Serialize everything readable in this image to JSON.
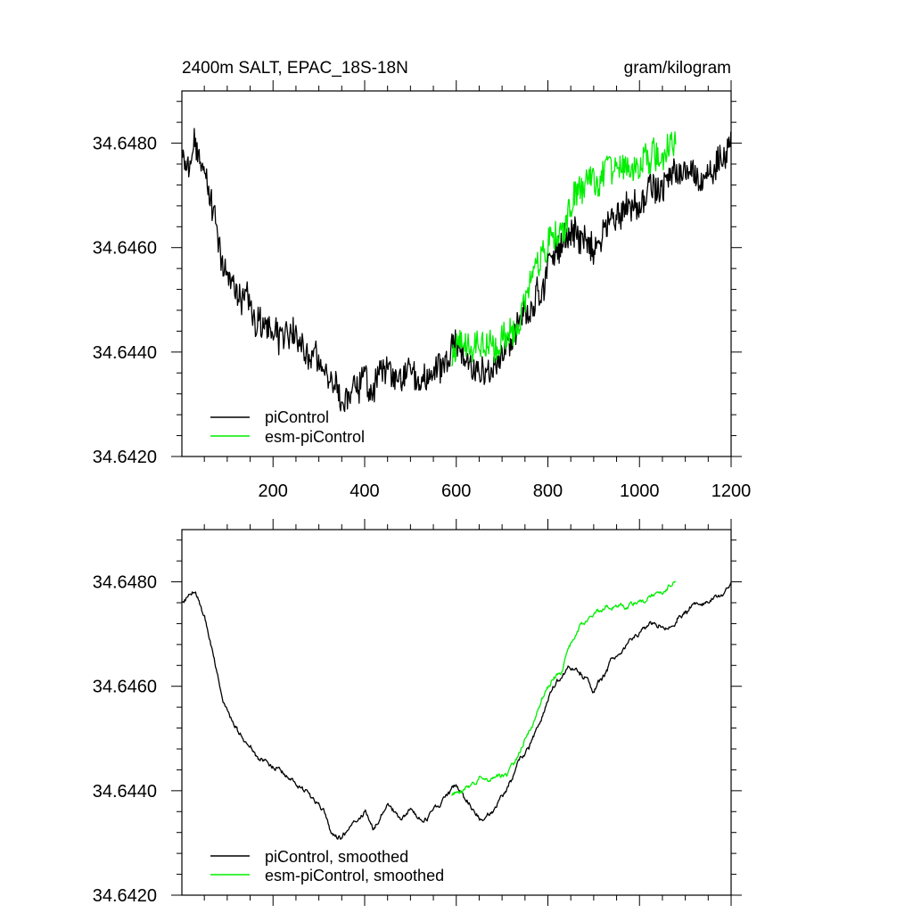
{
  "colors": {
    "piControl": "#000000",
    "esm_piControl": "#00ee00",
    "axis": "#000000",
    "background": "#ffffff"
  },
  "chart_data": [
    {
      "type": "line",
      "title": "2400m SALT, EPAC_18S-18N",
      "units": "gram/kilogram",
      "xlim": [
        1,
        1200
      ],
      "ylim": [
        34.642,
        34.649
      ],
      "xticks": [
        200,
        400,
        600,
        800,
        1000,
        1200
      ],
      "xtick_labels": [
        "200",
        "400",
        "600",
        "800",
        "1000",
        "1200"
      ],
      "yticks": [
        34.642,
        34.644,
        34.646,
        34.648
      ],
      "ytick_labels": [
        "34.6420",
        "34.6440",
        "34.6460",
        "34.6480"
      ],
      "legend_position": "bottom-left",
      "series": [
        {
          "name": "piControl",
          "color": "#000000",
          "noise": 0.00045,
          "x": [
            1,
            30,
            50,
            70,
            90,
            110,
            130,
            150,
            170,
            200,
            230,
            260,
            290,
            310,
            330,
            350,
            380,
            400,
            420,
            450,
            480,
            500,
            530,
            560,
            580,
            600,
            620,
            640,
            660,
            680,
            700,
            720,
            740,
            760,
            780,
            800,
            820,
            840,
            860,
            880,
            900,
            920,
            940,
            960,
            980,
            1000,
            1030,
            1060,
            1090,
            1120,
            1150,
            1180,
            1200
          ],
          "values": [
            34.6476,
            34.6479,
            34.6474,
            34.6466,
            34.6458,
            34.6454,
            34.6451,
            34.6449,
            34.6446,
            34.6445,
            34.6443,
            34.6441,
            34.6438,
            34.6436,
            34.6432,
            34.6431,
            34.6434,
            34.6436,
            34.6433,
            34.6437,
            34.6434,
            34.6436,
            34.6434,
            34.6437,
            34.6439,
            34.6441,
            34.6438,
            34.6436,
            34.6434,
            34.6436,
            34.6439,
            34.6442,
            34.6446,
            34.6448,
            34.6452,
            34.6457,
            34.6461,
            34.6463,
            34.6464,
            34.6462,
            34.6459,
            34.6462,
            34.6465,
            34.6467,
            34.6469,
            34.647,
            34.6472,
            34.6472,
            34.6474,
            34.6475,
            34.6476,
            34.6478,
            34.648
          ]
        },
        {
          "name": "esm-piControl",
          "color": "#00ee00",
          "noise": 0.00045,
          "x": [
            590,
            610,
            630,
            650,
            670,
            690,
            710,
            730,
            750,
            770,
            790,
            810,
            830,
            850,
            870,
            890,
            910,
            930,
            960,
            990,
            1020,
            1050,
            1080
          ],
          "values": [
            34.6439,
            34.644,
            34.6441,
            34.6442,
            34.6442,
            34.6443,
            34.6443,
            34.6446,
            34.645,
            34.6454,
            34.6458,
            34.6461,
            34.6463,
            34.6468,
            34.6472,
            34.6474,
            34.6474,
            34.6475,
            34.6475,
            34.6476,
            34.6477,
            34.6478,
            34.648
          ]
        }
      ],
      "legend": [
        {
          "label": "piControl",
          "color": "#000000"
        },
        {
          "label": "esm-piControl",
          "color": "#00ee00"
        }
      ]
    },
    {
      "type": "line",
      "title": "",
      "xlim": [
        1,
        1200
      ],
      "ylim": [
        34.642,
        34.649
      ],
      "xticks": [
        200,
        400,
        600,
        800,
        1000,
        1200
      ],
      "yticks": [
        34.642,
        34.644,
        34.646,
        34.648
      ],
      "ytick_labels": [
        "34.6420",
        "34.6440",
        "34.6460",
        "34.6480"
      ],
      "legend_position": "bottom-left",
      "series": [
        {
          "name": "piControl, smoothed",
          "color": "#000000",
          "noise": 0.00012,
          "x": [
            1,
            30,
            50,
            70,
            90,
            110,
            130,
            150,
            170,
            200,
            230,
            260,
            290,
            310,
            330,
            350,
            380,
            400,
            420,
            450,
            480,
            500,
            530,
            560,
            580,
            600,
            620,
            640,
            660,
            680,
            700,
            720,
            740,
            760,
            780,
            800,
            820,
            840,
            860,
            880,
            900,
            920,
            940,
            960,
            980,
            1000,
            1030,
            1060,
            1090,
            1120,
            1150,
            1180,
            1200
          ],
          "values": [
            34.6476,
            34.6479,
            34.6474,
            34.6466,
            34.6458,
            34.6454,
            34.6451,
            34.6449,
            34.6446,
            34.6445,
            34.6443,
            34.6441,
            34.6438,
            34.6436,
            34.6432,
            34.6431,
            34.6434,
            34.6436,
            34.6433,
            34.6437,
            34.6434,
            34.6436,
            34.6434,
            34.6437,
            34.6439,
            34.6441,
            34.6438,
            34.6436,
            34.6434,
            34.6436,
            34.6439,
            34.6442,
            34.6446,
            34.6448,
            34.6452,
            34.6457,
            34.6461,
            34.6463,
            34.6464,
            34.6462,
            34.6459,
            34.6462,
            34.6465,
            34.6467,
            34.6469,
            34.647,
            34.6472,
            34.6472,
            34.6474,
            34.6475,
            34.6476,
            34.6478,
            34.648
          ]
        },
        {
          "name": "esm-piControl, smoothed",
          "color": "#00ee00",
          "noise": 0.00012,
          "x": [
            590,
            610,
            630,
            650,
            670,
            690,
            710,
            730,
            750,
            770,
            790,
            810,
            830,
            850,
            870,
            890,
            910,
            930,
            960,
            990,
            1020,
            1050,
            1080
          ],
          "values": [
            34.6439,
            34.644,
            34.6441,
            34.6442,
            34.6442,
            34.6443,
            34.6443,
            34.6446,
            34.645,
            34.6454,
            34.6458,
            34.6461,
            34.6463,
            34.6468,
            34.6472,
            34.6474,
            34.6474,
            34.6475,
            34.6475,
            34.6476,
            34.6477,
            34.6478,
            34.648
          ]
        }
      ],
      "legend": [
        {
          "label": "piControl, smoothed",
          "color": "#000000"
        },
        {
          "label": "esm-piControl, smoothed",
          "color": "#00ee00"
        }
      ]
    }
  ]
}
